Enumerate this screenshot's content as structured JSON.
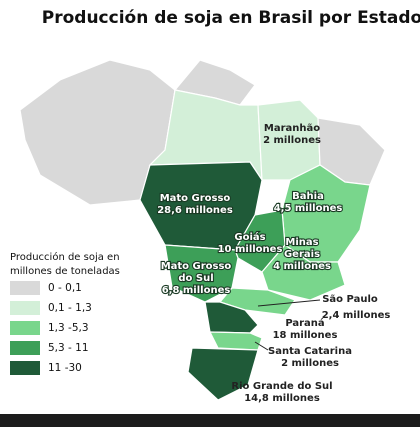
{
  "title": "Producción de soja en Brasil por Estado",
  "legend": {
    "title": [
      "Producción de soja en",
      "millones de toneladas"
    ],
    "items": [
      {
        "label": "0 - 0,1",
        "color": "#d9d9d9"
      },
      {
        "label": "0,1 - 1,3",
        "color": "#d3efd8"
      },
      {
        "label": "1,3 -5,3",
        "color": "#79d68c"
      },
      {
        "label": "5,3 - 11",
        "color": "#3d9f58"
      },
      {
        "label": "11 -30",
        "color": "#1f5a38"
      }
    ]
  },
  "states": [
    {
      "name": [
        "Maranhão"
      ],
      "value": "2 millones"
    },
    {
      "name": [
        "Mato Grosso"
      ],
      "value": "28,6 millones"
    },
    {
      "name": [
        "Bahia"
      ],
      "value": "4,5 millones"
    },
    {
      "name": [
        "Goiás"
      ],
      "value": "10 millones"
    },
    {
      "name": [
        "Minas",
        "Gerais"
      ],
      "value": "4 millones"
    },
    {
      "name": [
        "Mato Grosso",
        "do Sul"
      ],
      "value": "6,8 millones"
    },
    {
      "name": [
        "São Paulo"
      ],
      "value": "2,4 millones"
    },
    {
      "name": [
        "Paraná"
      ],
      "value": "18 millones"
    },
    {
      "name": [
        "Santa Catarina"
      ],
      "value": "2 millones"
    },
    {
      "name": [
        "Rio Grande do Sul"
      ],
      "value": "14,8 millones"
    }
  ]
}
